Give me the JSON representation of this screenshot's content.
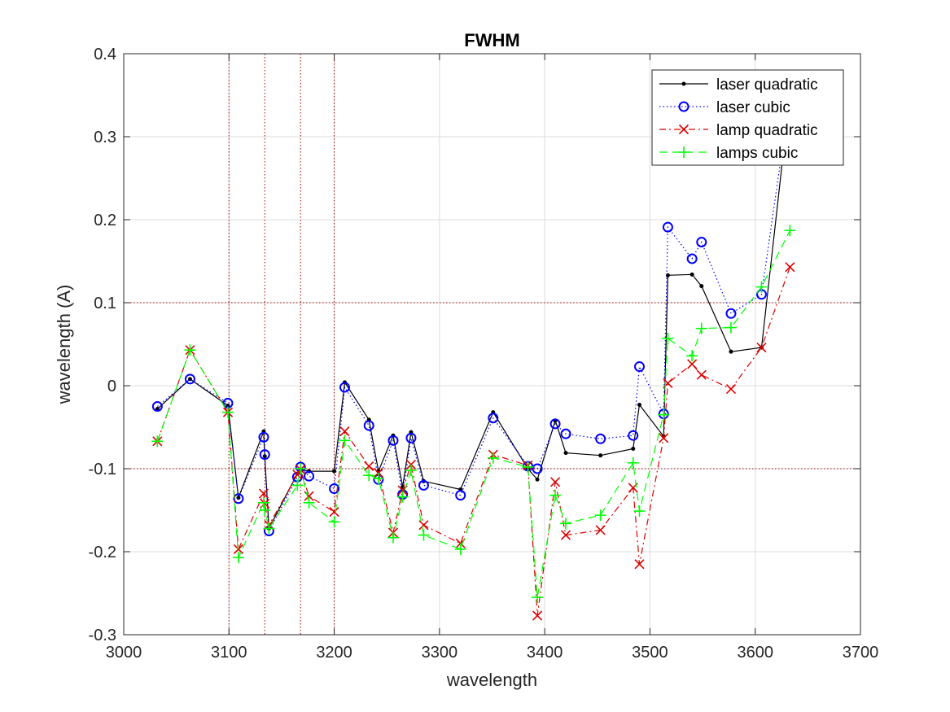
{
  "chart_data": {
    "type": "line",
    "title": "FWHM",
    "xlabel": "wavelength",
    "ylabel": "wavelength (A)",
    "xlim": [
      3000,
      3700
    ],
    "ylim": [
      -0.3,
      0.4
    ],
    "xticks": [
      3000,
      3100,
      3200,
      3300,
      3400,
      3500,
      3600,
      3700
    ],
    "yticks": [
      -0.3,
      -0.2,
      -0.1,
      0,
      0.1,
      0.2,
      0.3,
      0.4
    ],
    "ytick_labels": [
      "-0.3",
      "-0.2",
      "-0.1",
      "0",
      "0.1",
      "0.2",
      "0.3",
      "0.4"
    ],
    "grid": true,
    "legend_position": "top-right",
    "reference_lines": {
      "color": "#aa0000",
      "vertical_x": [
        3100,
        3134,
        3168,
        3200
      ],
      "horizontal_y": [
        0.1,
        -0.1
      ]
    },
    "series": [
      {
        "name": "laser quadratic",
        "color": "#000000",
        "line_style": "solid",
        "marker": "dot",
        "x": [
          3032,
          3063,
          3099,
          3109,
          3133,
          3134,
          3138,
          3165,
          3168,
          3176,
          3200,
          3210,
          3233,
          3242,
          3256,
          3265,
          3273,
          3285,
          3320,
          3351,
          3384,
          3393,
          3410,
          3420,
          3453,
          3484,
          3490,
          3513,
          3517,
          3540,
          3549,
          3577,
          3606,
          3633
        ],
        "y": [
          -0.028,
          0.008,
          -0.024,
          -0.135,
          -0.055,
          -0.085,
          -0.172,
          -0.106,
          -0.101,
          -0.103,
          -0.103,
          0.004,
          -0.041,
          -0.103,
          -0.06,
          -0.122,
          -0.056,
          -0.115,
          -0.125,
          -0.032,
          -0.1,
          -0.113,
          -0.042,
          -0.081,
          -0.084,
          -0.076,
          -0.023,
          -0.061,
          0.133,
          0.134,
          0.12,
          0.041,
          0.046,
          0.352
        ]
      },
      {
        "name": "laser cubic",
        "color": "#0000ff",
        "line_style": "dotted",
        "marker": "circle",
        "x": [
          3032,
          3063,
          3099,
          3109,
          3133,
          3134,
          3138,
          3165,
          3168,
          3176,
          3200,
          3210,
          3233,
          3242,
          3256,
          3265,
          3273,
          3285,
          3320,
          3351,
          3384,
          3393,
          3410,
          3420,
          3453,
          3484,
          3490,
          3513,
          3517,
          3540,
          3549,
          3577,
          3606,
          3633
        ],
        "y": [
          -0.025,
          0.008,
          -0.021,
          -0.136,
          -0.062,
          -0.083,
          -0.175,
          -0.11,
          -0.098,
          -0.109,
          -0.124,
          -0.002,
          -0.048,
          -0.113,
          -0.066,
          -0.131,
          -0.063,
          -0.12,
          -0.132,
          -0.039,
          -0.097,
          -0.1,
          -0.046,
          -0.058,
          -0.064,
          -0.06,
          0.023,
          -0.034,
          0.191,
          0.153,
          0.173,
          0.087,
          0.11,
          0.35
        ]
      },
      {
        "name": "lamp quadratic",
        "color": "#dd0000",
        "line_style": "dash-dot",
        "marker": "x",
        "x": [
          3032,
          3063,
          3099,
          3109,
          3133,
          3134,
          3138,
          3165,
          3168,
          3176,
          3200,
          3210,
          3233,
          3242,
          3256,
          3265,
          3273,
          3285,
          3320,
          3351,
          3384,
          3393,
          3410,
          3420,
          3453,
          3484,
          3490,
          3513,
          3517,
          3540,
          3549,
          3577,
          3606,
          3633
        ],
        "y": [
          -0.067,
          0.043,
          -0.032,
          -0.197,
          -0.13,
          -0.142,
          -0.168,
          -0.107,
          -0.101,
          -0.133,
          -0.152,
          -0.055,
          -0.097,
          -0.105,
          -0.177,
          -0.126,
          -0.095,
          -0.168,
          -0.19,
          -0.083,
          -0.096,
          -0.277,
          -0.116,
          -0.18,
          -0.174,
          -0.123,
          -0.215,
          -0.063,
          0.003,
          0.026,
          0.013,
          -0.004,
          0.046,
          0.143
        ]
      },
      {
        "name": "lamps cubic",
        "color": "#00ff00",
        "line_style": "dashed",
        "marker": "plus",
        "x": [
          3032,
          3063,
          3099,
          3109,
          3133,
          3134,
          3138,
          3165,
          3168,
          3176,
          3200,
          3210,
          3233,
          3242,
          3256,
          3265,
          3273,
          3285,
          3320,
          3351,
          3384,
          3393,
          3410,
          3420,
          3453,
          3484,
          3490,
          3513,
          3517,
          3540,
          3549,
          3577,
          3606,
          3633
        ],
        "y": [
          -0.067,
          0.043,
          -0.032,
          -0.207,
          -0.141,
          -0.15,
          -0.172,
          -0.12,
          -0.1,
          -0.141,
          -0.164,
          -0.066,
          -0.108,
          -0.112,
          -0.183,
          -0.134,
          -0.102,
          -0.18,
          -0.197,
          -0.087,
          -0.098,
          -0.255,
          -0.132,
          -0.166,
          -0.156,
          -0.093,
          -0.151,
          -0.035,
          0.057,
          0.036,
          0.069,
          0.07,
          0.119,
          0.187
        ]
      }
    ]
  }
}
